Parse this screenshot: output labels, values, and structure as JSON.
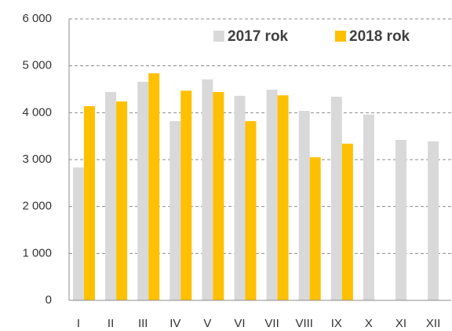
{
  "chart_data": {
    "type": "bar",
    "categories": [
      "I",
      "II",
      "III",
      "IV",
      "V",
      "VI",
      "VII",
      "VIII",
      "IX",
      "X",
      "XI",
      "XII"
    ],
    "series": [
      {
        "name": "2017 rok",
        "color": "#d9d9d9",
        "values": [
          2830,
          4440,
          4660,
          3820,
          4710,
          4360,
          4490,
          4040,
          4340,
          3960,
          3420,
          3390
        ]
      },
      {
        "name": "2018 rok",
        "color": "#ffc000",
        "values": [
          4140,
          4240,
          4840,
          4470,
          4440,
          3820,
          4370,
          3050,
          3340,
          null,
          null,
          null
        ]
      }
    ],
    "ylim": [
      0,
      6000
    ],
    "yticks": [
      {
        "value": 0,
        "label": "0"
      },
      {
        "value": 1000,
        "label": "1 000"
      },
      {
        "value": 2000,
        "label": "2 000"
      },
      {
        "value": 3000,
        "label": "3 000"
      },
      {
        "value": 4000,
        "label": "4 000"
      },
      {
        "value": 5000,
        "label": "5 000"
      },
      {
        "value": 6000,
        "label": "6 000"
      }
    ],
    "grid": true,
    "legend": "top-right"
  }
}
